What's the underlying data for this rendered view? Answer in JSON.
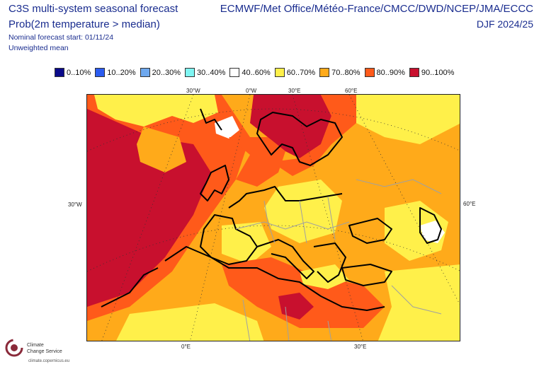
{
  "header": {
    "title": "C3S multi-system seasonal forecast",
    "subtitle": "Prob(2m temperature > median)",
    "nominal_start": "Nominal forecast start: 01/11/24",
    "weighting": "Unweighted mean",
    "sources": "ECMWF/Met Office/Météo-France/CMCC/DWD/NCEP/JMA/ECCC",
    "season": "DJF 2024/25"
  },
  "legend": [
    {
      "label": "0..10%",
      "color": "#0a0a8a"
    },
    {
      "label": "10..20%",
      "color": "#2b5cf0"
    },
    {
      "label": "20..30%",
      "color": "#6ea8ee"
    },
    {
      "label": "30..40%",
      "color": "#7ff5f2"
    },
    {
      "label": "40..60%",
      "color": "#ffffff"
    },
    {
      "label": "60..70%",
      "color": "#fff04a"
    },
    {
      "label": "70..80%",
      "color": "#ffaa1a"
    },
    {
      "label": "80..90%",
      "color": "#ff5a1a"
    },
    {
      "label": "90..100%",
      "color": "#c8102e"
    }
  ],
  "map": {
    "top_ticks": [
      "30°W",
      "0°W",
      "30°E",
      "60°E"
    ],
    "bottom_ticks": [
      "0°E",
      "30°E"
    ],
    "left_tick": "30°W",
    "right_tick": "60°E"
  },
  "logo": {
    "name_line1": "Climate",
    "name_line2": "Change Service",
    "url": "climate.copernicus.eu",
    "icon": "copernicus-logo-icon"
  }
}
